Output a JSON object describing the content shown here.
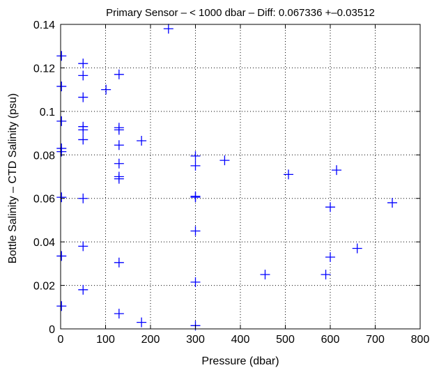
{
  "chart_data": {
    "type": "scatter",
    "title": "Primary Sensor – < 1000 dbar – Diff: 0.067336 +–0.03512",
    "xlabel": "Pressure (dbar)",
    "ylabel": "Bottle Salinity – CTD Salinity (psu)",
    "xlim": [
      0,
      800
    ],
    "ylim": [
      0,
      0.14
    ],
    "x_ticks": [
      0,
      100,
      200,
      300,
      400,
      500,
      600,
      700,
      800
    ],
    "x_tick_labels": [
      "0",
      "100",
      "200",
      "300",
      "400",
      "500",
      "600",
      "700",
      "800"
    ],
    "y_ticks": [
      0,
      0.02,
      0.04,
      0.06,
      0.08,
      0.1,
      0.12,
      0.14
    ],
    "y_tick_labels": [
      "0",
      "0.02",
      "0.04",
      "0.06",
      "0.08",
      "0.1",
      "0.12",
      "0.14"
    ],
    "grid": true,
    "marker": "plus",
    "marker_color": "#0000ff",
    "series": [
      {
        "points": [
          {
            "x": 2,
            "y": 0.1255
          },
          {
            "x": 2,
            "y": 0.1115
          },
          {
            "x": 2,
            "y": 0.0955
          },
          {
            "x": 2,
            "y": 0.083
          },
          {
            "x": 2,
            "y": 0.0815
          },
          {
            "x": 2,
            "y": 0.0605
          },
          {
            "x": 2,
            "y": 0.0335
          },
          {
            "x": 2,
            "y": 0.0105
          },
          {
            "x": 50,
            "y": 0.122
          },
          {
            "x": 50,
            "y": 0.1165
          },
          {
            "x": 50,
            "y": 0.1065
          },
          {
            "x": 50,
            "y": 0.093
          },
          {
            "x": 50,
            "y": 0.0915
          },
          {
            "x": 50,
            "y": 0.087
          },
          {
            "x": 50,
            "y": 0.06
          },
          {
            "x": 50,
            "y": 0.038
          },
          {
            "x": 50,
            "y": 0.018
          },
          {
            "x": 101,
            "y": 0.11
          },
          {
            "x": 130,
            "y": 0.117
          },
          {
            "x": 130,
            "y": 0.0925
          },
          {
            "x": 130,
            "y": 0.0915
          },
          {
            "x": 130,
            "y": 0.0845
          },
          {
            "x": 130,
            "y": 0.076
          },
          {
            "x": 130,
            "y": 0.07
          },
          {
            "x": 130,
            "y": 0.069
          },
          {
            "x": 130,
            "y": 0.0305
          },
          {
            "x": 130,
            "y": 0.007
          },
          {
            "x": 180,
            "y": 0.0865
          },
          {
            "x": 180,
            "y": 0.003
          },
          {
            "x": 240,
            "y": 0.138
          },
          {
            "x": 300,
            "y": 0.0795
          },
          {
            "x": 300,
            "y": 0.075
          },
          {
            "x": 300,
            "y": 0.061
          },
          {
            "x": 300,
            "y": 0.0605
          },
          {
            "x": 300,
            "y": 0.045
          },
          {
            "x": 300,
            "y": 0.0215
          },
          {
            "x": 300,
            "y": 0.0015
          },
          {
            "x": 365,
            "y": 0.0775
          },
          {
            "x": 455,
            "y": 0.025
          },
          {
            "x": 507,
            "y": 0.071
          },
          {
            "x": 590,
            "y": 0.025
          },
          {
            "x": 600,
            "y": 0.056
          },
          {
            "x": 600,
            "y": 0.033
          },
          {
            "x": 614,
            "y": 0.073
          },
          {
            "x": 660,
            "y": 0.037
          },
          {
            "x": 738,
            "y": 0.058
          }
        ]
      }
    ]
  }
}
